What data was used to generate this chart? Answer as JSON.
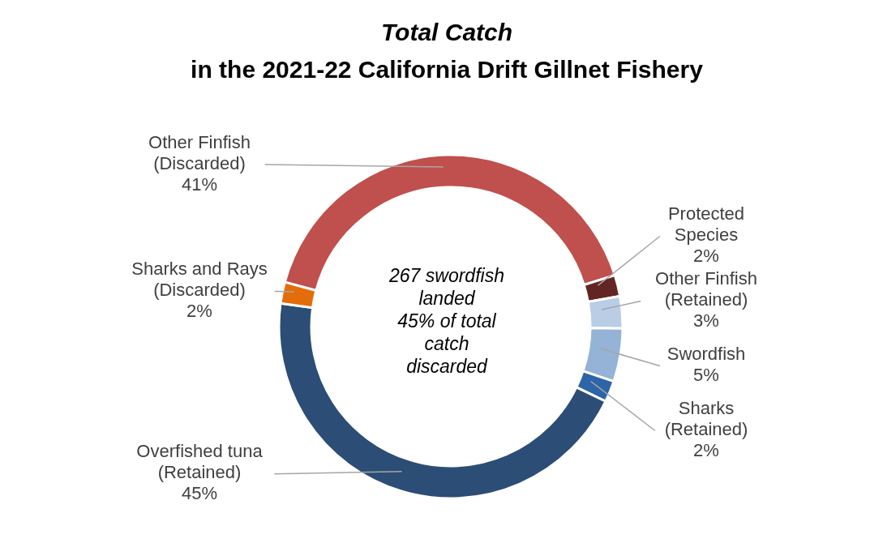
{
  "chart_data": {
    "type": "donut",
    "title": "Total Catch",
    "subtitle": "in the 2021-22 California Drift Gillnet Fishery",
    "categories": [
      "Other Finfish (Discarded)",
      "Protected Species",
      "Other Finfish (Retained)",
      "Swordfish",
      "Sharks (Retained)",
      "Overfished tuna (Retained)",
      "Sharks and Rays (Discarded)"
    ],
    "values": [
      41,
      2,
      3,
      5,
      2,
      45,
      2
    ],
    "value_labels": [
      "41%",
      "2%",
      "3%",
      "5%",
      "2%",
      "45%",
      "2%"
    ],
    "colors": [
      "#c0504d",
      "#632523",
      "#b9cde5",
      "#95b3d7",
      "#2e64a8",
      "#2c4d75",
      "#e46c0a"
    ],
    "annotations": [
      "267 swordfish landed",
      "45% of total catch discarded"
    ]
  }
}
